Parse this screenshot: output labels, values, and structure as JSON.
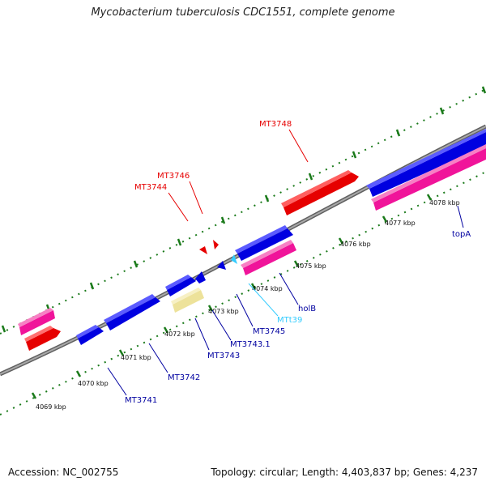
{
  "title": "Mycobacterium tuberculosis CDC1551, complete genome",
  "footer": {
    "accession": "Accession: NC_002755",
    "summary": "Topology: circular; Length: 4,403,837 bp; Genes: 4,237"
  },
  "colors": {
    "backbone": "#808080",
    "tick": "#1a7a1a",
    "red": "#e60000",
    "blue": "#0000e0",
    "pink": "#f0149a",
    "cyan": "#33ccff",
    "khaki": "#ede29a"
  },
  "ticks": [
    "4069 kbp",
    "4070 kbp",
    "4071 kbp",
    "4072 kbp",
    "4073 kbp",
    "4074 kbp",
    "4075 kbp",
    "4076 kbp",
    "4077 kbp",
    "4078 kbp"
  ],
  "labels": {
    "mt3748": "MT3748",
    "mt3746": "MT3746",
    "mt3744": "MT3744",
    "mt3741": "MT3741",
    "mt3742": "MT3742",
    "mt3743": "MT3743",
    "mt3743_1": "MT3743.1",
    "mt3745": "MT3745",
    "mtt39": "MTt39",
    "holb": "holB",
    "topa": "topA"
  }
}
